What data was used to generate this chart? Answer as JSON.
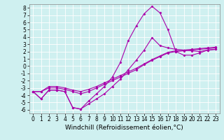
{
  "title": "",
  "xlabel": "Windchill (Refroidissement éolien,°C)",
  "ylabel": "",
  "background_color": "#cff0f0",
  "grid_color": "#ffffff",
  "line_color": "#aa00aa",
  "xlim": [
    -0.5,
    23.5
  ],
  "ylim": [
    -6.5,
    8.5
  ],
  "xticks": [
    0,
    1,
    2,
    3,
    4,
    5,
    6,
    7,
    8,
    9,
    10,
    11,
    12,
    13,
    14,
    15,
    16,
    17,
    18,
    19,
    20,
    21,
    22,
    23
  ],
  "yticks": [
    -6,
    -5,
    -4,
    -3,
    -2,
    -1,
    0,
    1,
    2,
    3,
    4,
    5,
    6,
    7,
    8
  ],
  "line1_x": [
    0,
    1,
    2,
    3,
    4,
    5,
    6,
    7,
    8,
    9,
    10,
    11,
    12,
    13,
    14,
    15,
    16,
    17,
    18,
    19,
    20,
    21,
    22,
    23
  ],
  "line1_y": [
    -3.5,
    -4.5,
    -3.3,
    -3.3,
    -3.5,
    -5.7,
    -5.9,
    -5.2,
    -4.5,
    -3.8,
    -2.8,
    -1.8,
    -0.5,
    0.8,
    2.2,
    3.9,
    2.8,
    2.5,
    2.3,
    2.2,
    2.1,
    2.0,
    2.2,
    2.3
  ],
  "line2_x": [
    0,
    1,
    2,
    3,
    4,
    5,
    6,
    7,
    8,
    9,
    10,
    11,
    12,
    13,
    14,
    15,
    16,
    17,
    18,
    19,
    20,
    21,
    22,
    23
  ],
  "line2_y": [
    -3.5,
    -4.5,
    -3.3,
    -3.3,
    -3.5,
    -5.7,
    -5.9,
    -4.8,
    -3.8,
    -2.8,
    -1.5,
    0.5,
    3.5,
    5.5,
    7.2,
    8.2,
    7.3,
    5.0,
    2.0,
    1.5,
    1.5,
    1.8,
    2.2,
    2.3
  ],
  "line3_x": [
    0,
    1,
    2,
    3,
    4,
    5,
    6,
    7,
    8,
    9,
    10,
    11,
    12,
    13,
    14,
    15,
    16,
    17,
    18,
    19,
    20,
    21,
    22,
    23
  ],
  "line3_y": [
    -3.5,
    -3.5,
    -3.0,
    -3.0,
    -3.2,
    -3.5,
    -3.8,
    -3.5,
    -3.0,
    -2.5,
    -2.0,
    -1.5,
    -1.0,
    -0.5,
    0.2,
    0.8,
    1.3,
    1.8,
    2.0,
    2.1,
    2.2,
    2.3,
    2.4,
    2.5
  ],
  "line4_x": [
    0,
    1,
    2,
    3,
    4,
    5,
    6,
    7,
    8,
    9,
    10,
    11,
    12,
    13,
    14,
    15,
    16,
    17,
    18,
    19,
    20,
    21,
    22,
    23
  ],
  "line4_y": [
    -3.5,
    -3.5,
    -2.8,
    -2.8,
    -3.0,
    -3.3,
    -3.5,
    -3.2,
    -2.8,
    -2.3,
    -1.8,
    -1.3,
    -0.8,
    -0.3,
    0.3,
    0.9,
    1.4,
    1.9,
    2.1,
    2.2,
    2.3,
    2.4,
    2.5,
    2.6
  ],
  "tick_fontsize": 5.5,
  "xlabel_fontsize": 6.5,
  "line_width": 0.8,
  "marker": "D",
  "marker_size": 1.5
}
